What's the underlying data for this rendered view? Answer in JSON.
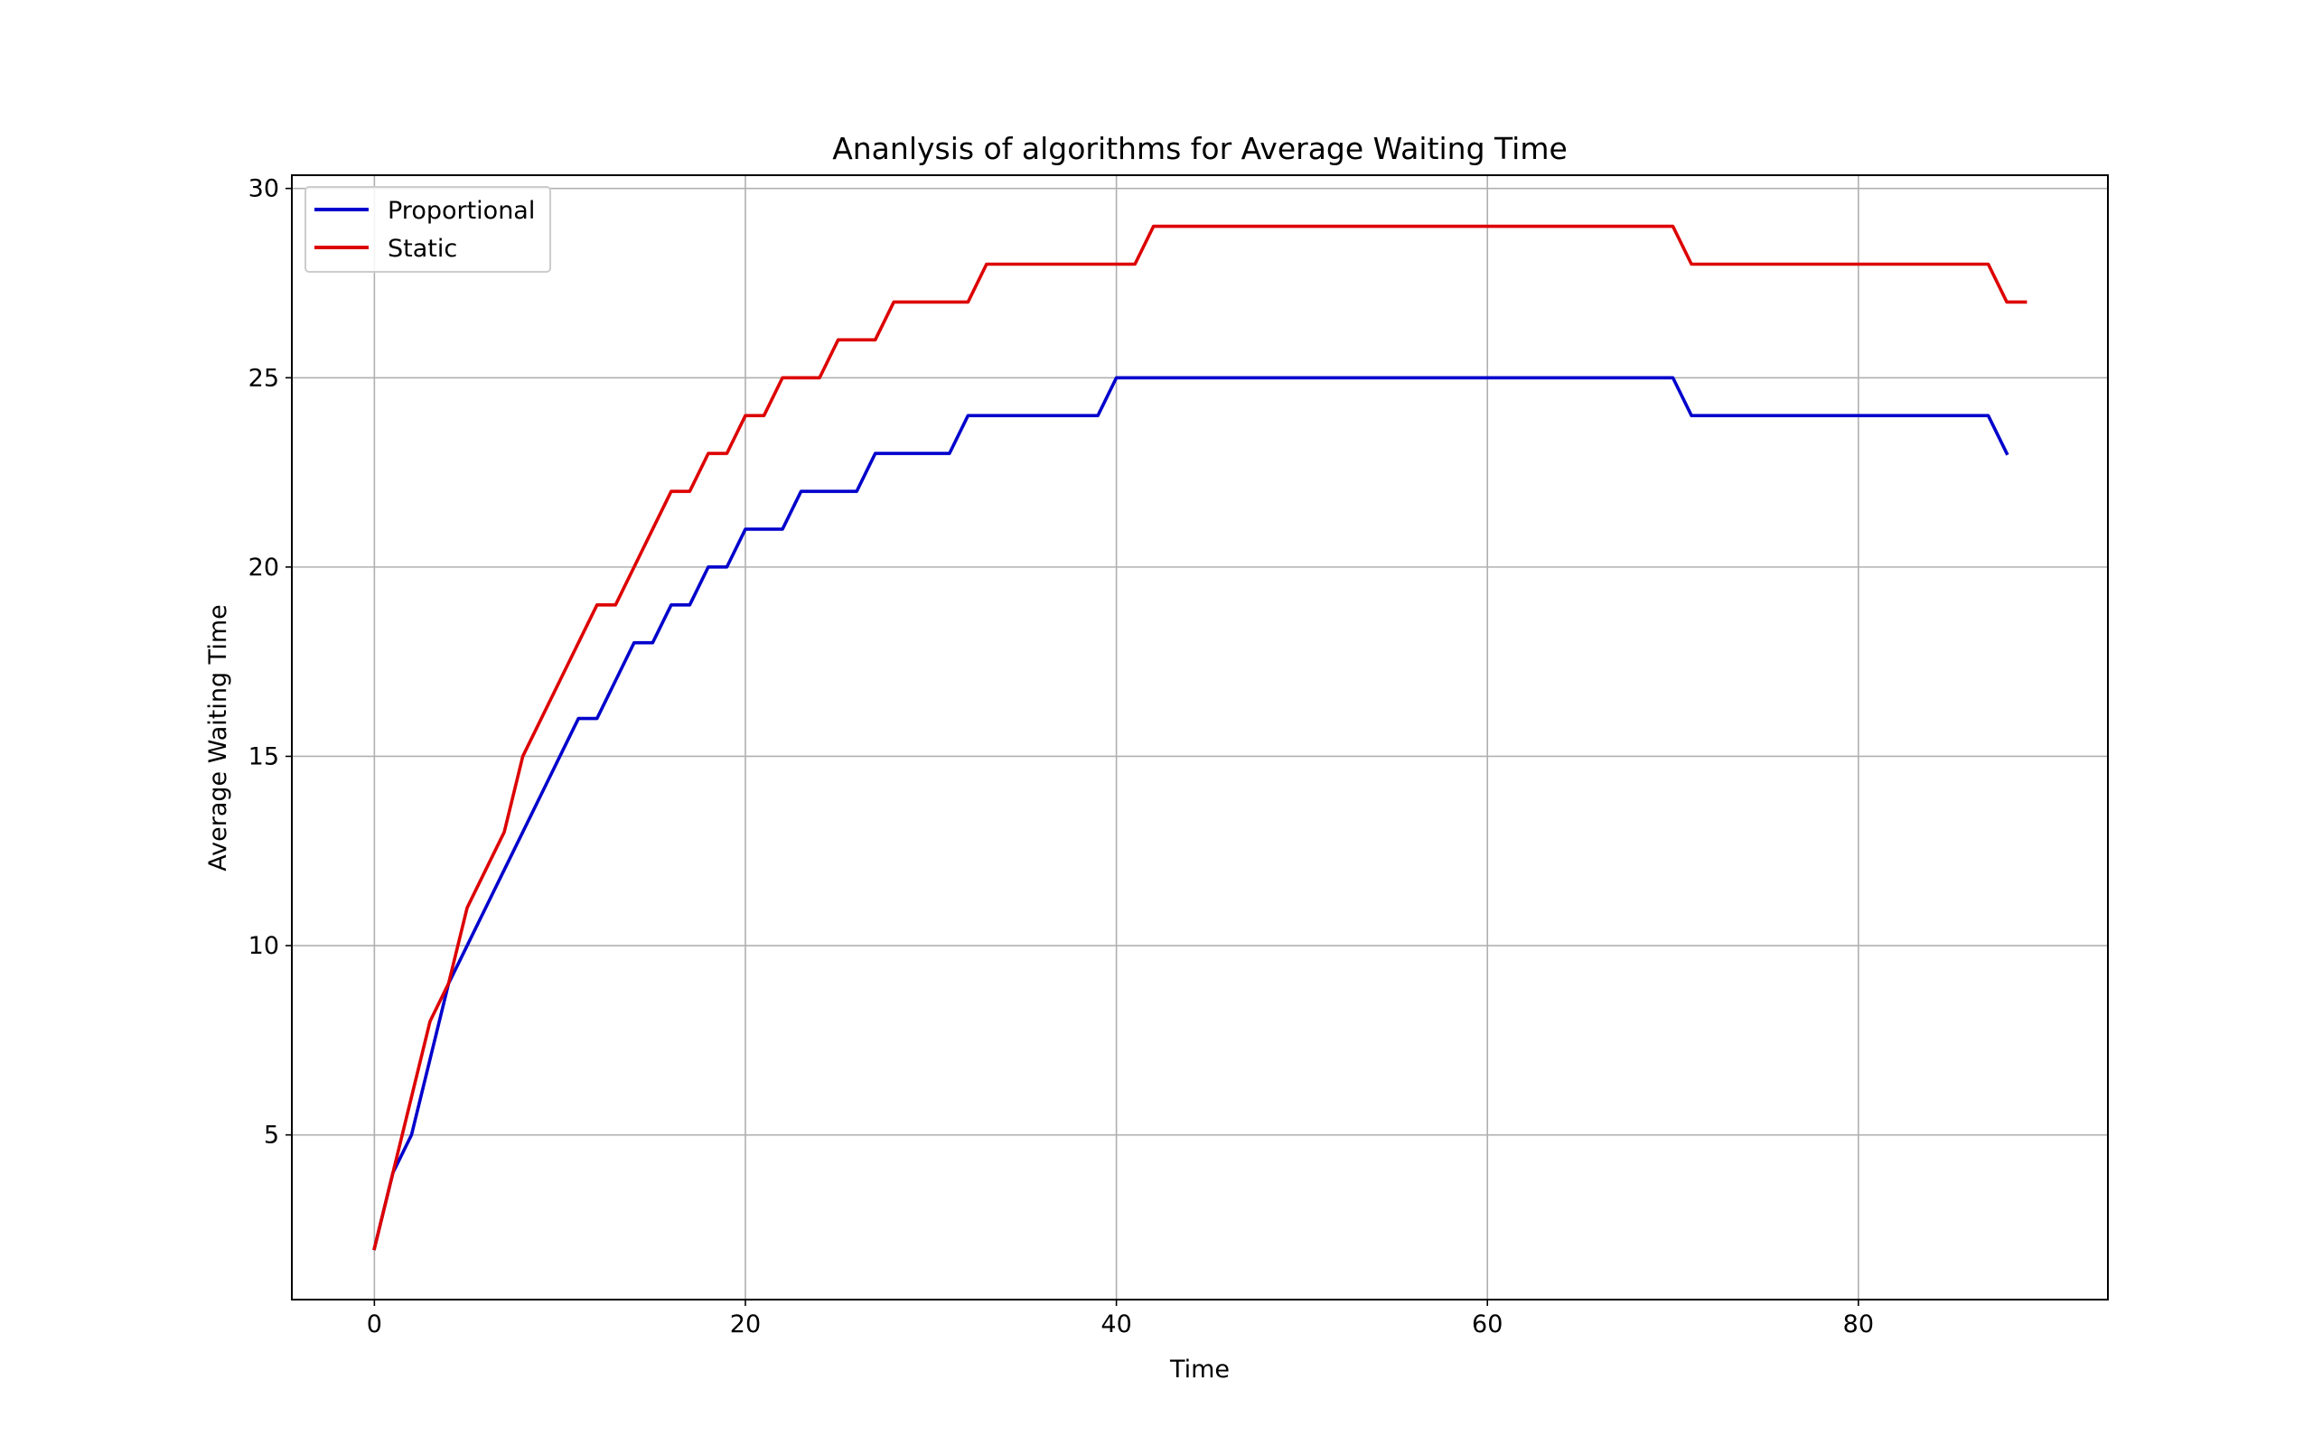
{
  "chart_data": {
    "type": "line",
    "title": "Ananlysis of algorithms for Average Waiting Time",
    "xlabel": "Time",
    "ylabel": "Average Waiting Time",
    "xlim": [
      -4.45,
      93.45
    ],
    "ylim": [
      0.65,
      30.35
    ],
    "xticks": [
      0,
      20,
      40,
      60,
      80
    ],
    "yticks": [
      5,
      10,
      15,
      20,
      25,
      30
    ],
    "grid": true,
    "legend_position": "upper-left",
    "series": [
      {
        "name": "Proportional",
        "color": "#0000cc",
        "x": [
          0,
          1,
          2,
          3,
          4,
          5,
          6,
          7,
          8,
          9,
          10,
          11,
          12,
          13,
          14,
          15,
          16,
          17,
          18,
          19,
          20,
          21,
          22,
          23,
          24,
          25,
          26,
          27,
          28,
          29,
          30,
          31,
          32,
          33,
          34,
          35,
          36,
          37,
          38,
          39,
          40,
          41,
          42,
          43,
          44,
          45,
          46,
          47,
          48,
          49,
          50,
          51,
          52,
          53,
          54,
          55,
          56,
          57,
          58,
          59,
          60,
          61,
          62,
          63,
          64,
          65,
          66,
          67,
          68,
          69,
          70,
          71,
          72,
          73,
          74,
          75,
          76,
          77,
          78,
          79,
          80,
          81,
          82,
          83,
          84,
          85,
          86,
          87,
          88
        ],
        "y": [
          2,
          4,
          5,
          7,
          9,
          10,
          11,
          12,
          13,
          14,
          15,
          16,
          16,
          17,
          18,
          18,
          19,
          19,
          20,
          20,
          21,
          21,
          21,
          22,
          22,
          22,
          22,
          23,
          23,
          23,
          23,
          23,
          24,
          24,
          24,
          24,
          24,
          24,
          24,
          24,
          25,
          25,
          25,
          25,
          25,
          25,
          25,
          25,
          25,
          25,
          25,
          25,
          25,
          25,
          25,
          25,
          25,
          25,
          25,
          25,
          25,
          25,
          25,
          25,
          25,
          25,
          25,
          25,
          25,
          25,
          25,
          24,
          24,
          24,
          24,
          24,
          24,
          24,
          24,
          24,
          24,
          24,
          24,
          24,
          24,
          24,
          24,
          24,
          23
        ]
      },
      {
        "name": "Static",
        "color": "#dd0000",
        "x": [
          0,
          1,
          2,
          3,
          4,
          5,
          6,
          7,
          8,
          9,
          10,
          11,
          12,
          13,
          14,
          15,
          16,
          17,
          18,
          19,
          20,
          21,
          22,
          23,
          24,
          25,
          26,
          27,
          28,
          29,
          30,
          31,
          32,
          33,
          34,
          35,
          36,
          37,
          38,
          39,
          40,
          41,
          42,
          43,
          44,
          45,
          46,
          47,
          48,
          49,
          50,
          51,
          52,
          53,
          54,
          55,
          56,
          57,
          58,
          59,
          60,
          61,
          62,
          63,
          64,
          65,
          66,
          67,
          68,
          69,
          70,
          71,
          72,
          73,
          74,
          75,
          76,
          77,
          78,
          79,
          80,
          81,
          82,
          83,
          84,
          85,
          86,
          87,
          88,
          89
        ],
        "y": [
          2,
          4,
          6,
          8,
          9,
          11,
          12,
          13,
          15,
          16,
          17,
          18,
          19,
          19,
          20,
          21,
          22,
          22,
          23,
          23,
          24,
          24,
          25,
          25,
          25,
          26,
          26,
          26,
          27,
          27,
          27,
          27,
          27,
          28,
          28,
          28,
          28,
          28,
          28,
          28,
          28,
          28,
          29,
          29,
          29,
          29,
          29,
          29,
          29,
          29,
          29,
          29,
          29,
          29,
          29,
          29,
          29,
          29,
          29,
          29,
          29,
          29,
          29,
          29,
          29,
          29,
          29,
          29,
          29,
          29,
          29,
          28,
          28,
          28,
          28,
          28,
          28,
          28,
          28,
          28,
          28,
          28,
          28,
          28,
          28,
          28,
          28,
          28,
          27,
          27
        ]
      }
    ]
  }
}
